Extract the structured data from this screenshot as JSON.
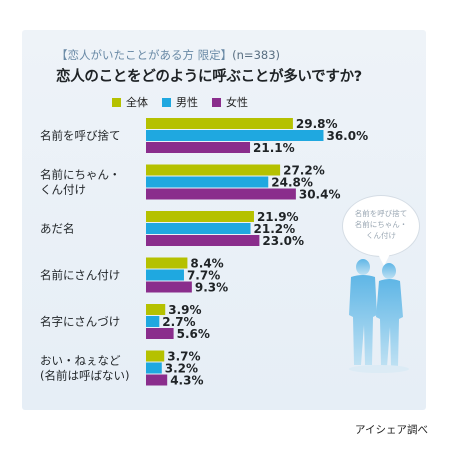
{
  "subtitle": "【恋人がいたことがある方 限定】",
  "sample_size": "(n=383)",
  "title": "恋人のことをどのように呼ぶことが多いですか?",
  "source": "アイシェア調べ",
  "bubble": {
    "line1": "名前を呼び捨て",
    "line2": "名前にちゃん・",
    "line3": "くん付け"
  },
  "chart_data": {
    "type": "bar",
    "orientation": "horizontal",
    "unit": "%",
    "categories": [
      [
        "名前を呼び捨て"
      ],
      [
        "名前にちゃん・",
        "くん付け"
      ],
      [
        "あだ名"
      ],
      [
        "名前にさん付け"
      ],
      [
        "名字にさんづけ"
      ],
      [
        "おい・ねぇなど",
        "(名前は呼ばない)"
      ]
    ],
    "series": [
      {
        "name": "全体",
        "color": "#b5c100",
        "values": [
          29.8,
          27.2,
          21.9,
          8.4,
          3.9,
          3.7
        ],
        "labels": [
          "29.8%",
          "27.2%",
          "21.9%",
          "8.4%",
          "3.9%",
          "3.7%"
        ]
      },
      {
        "name": "男性",
        "color": "#1fa8e0",
        "values": [
          36.0,
          24.8,
          21.2,
          7.7,
          2.7,
          3.2
        ],
        "labels": [
          "36.0%",
          "24.8%",
          "21.2%",
          "7.7%",
          "2.7%",
          "3.2%"
        ]
      },
      {
        "name": "女性",
        "color": "#8a2d8c",
        "values": [
          21.1,
          30.4,
          23.0,
          9.3,
          5.6,
          4.3
        ],
        "labels": [
          "21.1%",
          "30.4%",
          "23.0%",
          "9.3%",
          "5.6%",
          "4.3%"
        ]
      }
    ],
    "xlim": [
      0,
      40
    ],
    "legend": "top"
  }
}
